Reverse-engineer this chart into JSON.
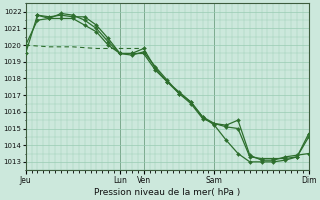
{
  "xlabel": "Pression niveau de la mer( hPa )",
  "bg_color": "#cce8dc",
  "grid_color": "#99ccb3",
  "line_color": "#2d6e2d",
  "ylim": [
    1012.5,
    1022.5
  ],
  "yticks": [
    1013,
    1014,
    1015,
    1016,
    1017,
    1018,
    1019,
    1020,
    1021,
    1022
  ],
  "day_labels": [
    "Jeu",
    "",
    "Lun",
    "Ven",
    "",
    "Sam",
    "",
    "Dim"
  ],
  "day_positions": [
    0,
    48,
    96,
    120,
    144,
    192,
    240,
    288
  ],
  "vline_positions": [
    0,
    96,
    120,
    192,
    288
  ],
  "total_hours": 288,
  "series1": {
    "x": [
      0,
      12,
      24,
      36,
      48,
      60,
      72,
      84,
      96,
      108,
      120,
      132,
      144,
      156,
      168,
      180,
      192,
      204,
      216,
      228,
      240,
      252,
      264,
      276,
      288
    ],
    "y": [
      1019.5,
      1021.8,
      1021.7,
      1021.8,
      1021.7,
      1021.7,
      1021.2,
      1020.4,
      1019.5,
      1019.5,
      1019.5,
      1018.5,
      1017.8,
      1017.2,
      1016.6,
      1015.7,
      1015.2,
      1014.3,
      1013.5,
      1013.0,
      1013.0,
      1013.0,
      1013.1,
      1013.3,
      1014.7
    ]
  },
  "series2": {
    "x": [
      0,
      12,
      24,
      36,
      48,
      60,
      72,
      84,
      96,
      108,
      120,
      132,
      144,
      156,
      168,
      180,
      192,
      204,
      216,
      228,
      240,
      252,
      264,
      276,
      288
    ],
    "y": [
      1020.0,
      1021.5,
      1021.6,
      1021.6,
      1021.6,
      1021.2,
      1020.8,
      1020.0,
      1019.5,
      1019.5,
      1019.8,
      1018.6,
      1017.8,
      1017.1,
      1016.6,
      1015.7,
      1015.3,
      1015.1,
      1015.0,
      1013.3,
      1013.2,
      1013.2,
      1013.2,
      1013.3,
      1014.5
    ]
  },
  "series3": {
    "x": [
      12,
      24,
      36,
      48,
      60,
      72,
      84,
      96,
      108,
      120,
      132,
      144,
      156,
      168,
      180,
      192,
      204,
      216,
      228,
      240,
      252,
      264,
      276,
      288
    ],
    "y": [
      1021.8,
      1021.6,
      1021.9,
      1021.8,
      1021.5,
      1021.0,
      1020.2,
      1019.5,
      1019.4,
      1019.6,
      1018.7,
      1017.9,
      1017.1,
      1016.5,
      1015.6,
      1015.3,
      1015.2,
      1015.5,
      1013.4,
      1013.1,
      1013.1,
      1013.3,
      1013.4,
      1013.5
    ]
  },
  "series4_dashed": {
    "x": [
      0,
      24,
      48,
      72,
      96,
      120
    ],
    "y": [
      1020.0,
      1019.9,
      1019.9,
      1019.8,
      1019.8,
      1019.8
    ]
  }
}
